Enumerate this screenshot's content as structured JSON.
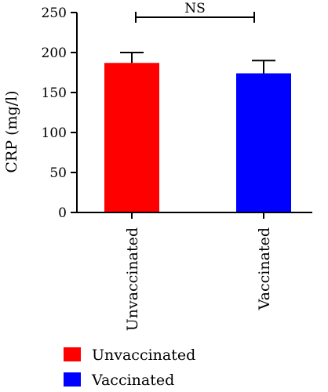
{
  "chart_data": {
    "type": "bar",
    "categories": [
      "Unvaccinated",
      "Vaccinated"
    ],
    "values": [
      187,
      174
    ],
    "errors": [
      13,
      16
    ],
    "colors": [
      "#ff0000",
      "#0000ff"
    ],
    "ylabel": "CRP (mg/l)",
    "ylim": [
      0,
      250
    ],
    "yticks": [
      "0",
      "50",
      "100",
      "150",
      "200",
      "250"
    ],
    "significance": {
      "label": "NS",
      "between": [
        "Unvaccinated",
        "Vaccinated"
      ]
    },
    "legend": {
      "placement": "bottom-left",
      "entries": [
        {
          "label": "Unvaccinated",
          "color": "#ff0000"
        },
        {
          "label": "Vaccinated",
          "color": "#0000ff"
        }
      ]
    }
  }
}
